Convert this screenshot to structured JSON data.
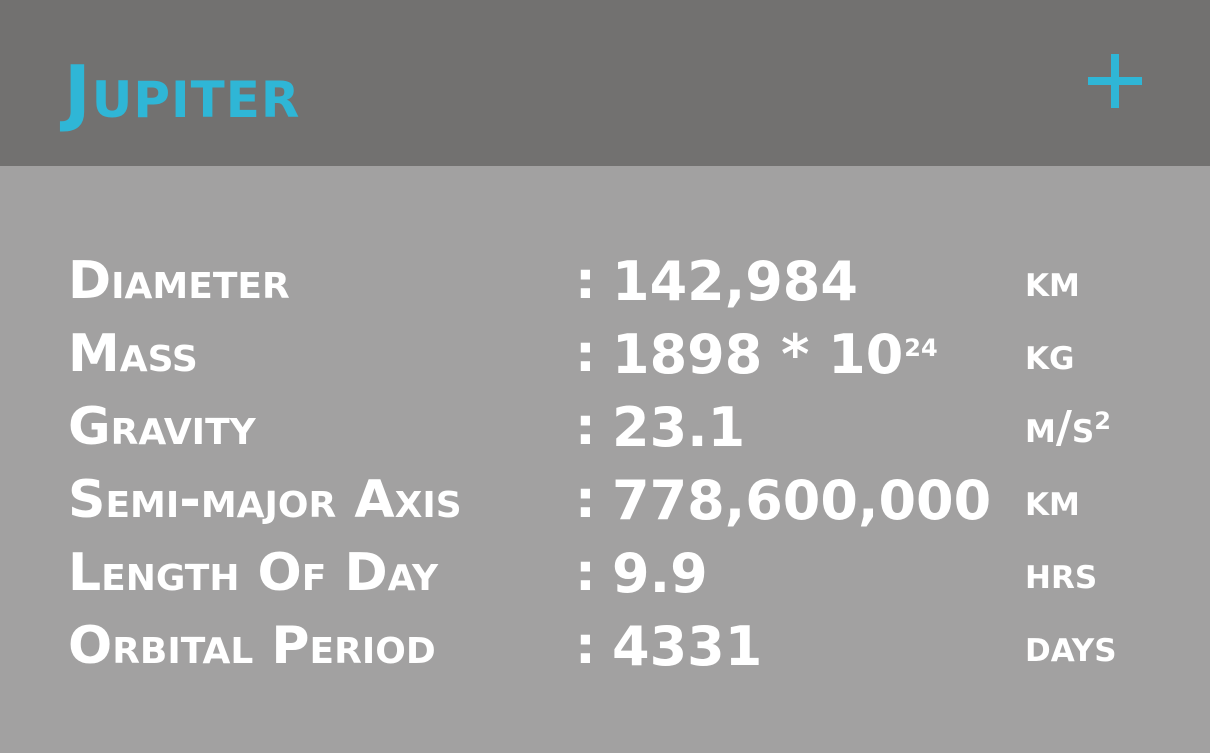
{
  "colors": {
    "header_bg": "#727170",
    "body_bg": "#a2a1a1",
    "accent": "#2fb6d6",
    "text": "#ffffff"
  },
  "header": {
    "title": "Jupiter",
    "add_icon": "plus-icon"
  },
  "stats": [
    {
      "label": "Diameter",
      "value": "142,984",
      "value_sup": "",
      "unit": "km",
      "unit_sup": ""
    },
    {
      "label": "Mass",
      "value": "1898 * 10",
      "value_sup": "24",
      "unit": "kg",
      "unit_sup": ""
    },
    {
      "label": "Gravity",
      "value": "23.1",
      "value_sup": "",
      "unit": "m/s",
      "unit_sup": "2"
    },
    {
      "label": "Semi-major Axis",
      "value": "778,600,000",
      "value_sup": "",
      "unit": "km",
      "unit_sup": ""
    },
    {
      "label": "Length Of Day",
      "value": "9.9",
      "value_sup": "",
      "unit": "hrs",
      "unit_sup": ""
    },
    {
      "label": "Orbital Period",
      "value": "4331",
      "value_sup": "",
      "unit": "days",
      "unit_sup": ""
    }
  ],
  "separator": ":"
}
